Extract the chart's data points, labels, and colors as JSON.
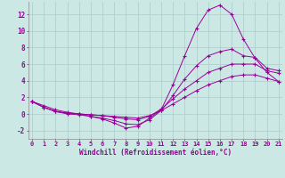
{
  "xlabel": "Windchill (Refroidissement éolien,°C)",
  "bg_color": "#cce8e4",
  "grid_color": "#aacccc",
  "line_color": "#990099",
  "x_ticks": [
    0,
    1,
    2,
    3,
    4,
    5,
    6,
    7,
    8,
    9,
    10,
    11,
    12,
    13,
    14,
    15,
    16,
    17,
    18,
    19,
    20,
    21
  ],
  "y_ticks": [
    -2,
    0,
    2,
    4,
    6,
    8,
    10,
    12
  ],
  "ylim": [
    -3.0,
    13.5
  ],
  "xlim": [
    -0.3,
    21.3
  ],
  "series": [
    [
      1.5,
      1.0,
      0.5,
      0.2,
      0.0,
      -0.3,
      -0.6,
      -1.1,
      -1.7,
      -1.5,
      -0.5,
      0.5,
      3.5,
      7.0,
      10.3,
      12.5,
      13.1,
      12.0,
      9.0,
      6.7,
      5.0,
      3.9
    ],
    [
      1.5,
      0.8,
      0.3,
      0.0,
      -0.1,
      -0.3,
      -0.5,
      -0.8,
      -1.2,
      -1.3,
      -0.7,
      0.4,
      2.2,
      4.2,
      5.8,
      7.0,
      7.5,
      7.8,
      7.0,
      6.8,
      5.5,
      5.2
    ],
    [
      1.5,
      0.8,
      0.3,
      0.1,
      0.0,
      -0.1,
      -0.2,
      -0.4,
      -0.6,
      -0.7,
      -0.3,
      0.6,
      1.8,
      3.0,
      4.0,
      5.0,
      5.5,
      6.0,
      6.0,
      6.0,
      5.2,
      4.9
    ],
    [
      1.5,
      0.8,
      0.3,
      0.1,
      0.0,
      -0.1,
      -0.2,
      -0.3,
      -0.4,
      -0.5,
      -0.2,
      0.4,
      1.2,
      2.0,
      2.8,
      3.5,
      4.0,
      4.5,
      4.7,
      4.7,
      4.3,
      3.9
    ]
  ]
}
